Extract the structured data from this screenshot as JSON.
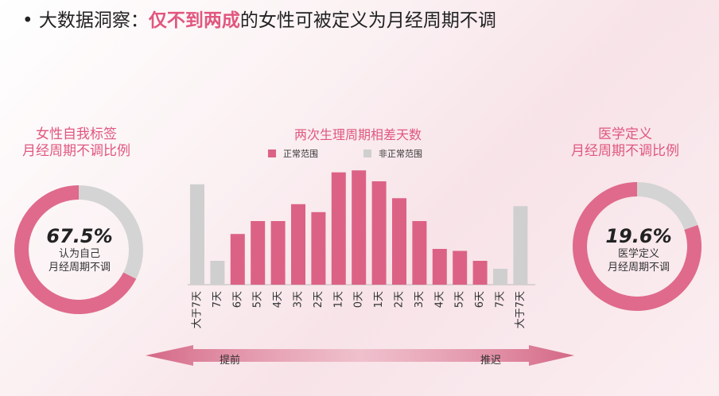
{
  "title": {
    "bullet": "•",
    "prefix": "大数据洞察：",
    "highlight": "仅不到两成",
    "suffix": "的女性可被定义为月经周期不调"
  },
  "left_panel": {
    "heading_line1": "女性自我标签",
    "heading_line2": "月经周期不调比例",
    "percent": "67.5%",
    "sub_line1": "认为自己",
    "sub_line2": "月经周期不调",
    "value": 0.675
  },
  "right_panel": {
    "heading_line1": "医学定义",
    "heading_line2": "月经周期不调比例",
    "percent": "19.6%",
    "sub_line1": "医学定义",
    "sub_line2": "月经周期不调",
    "value": 0.196
  },
  "colors": {
    "accent": "#e0577f",
    "bar_normal": "#dc6285",
    "bar_abnormal": "#cfcfcf",
    "donut_fill": "#e06a8c",
    "donut_rest": "#d4d4d4"
  },
  "chart_data": {
    "type": "bar",
    "title": "两次生理周期相差天数",
    "legend": [
      "正常范围",
      "非正常范围"
    ],
    "categories": [
      "大于7天",
      "7天",
      "6天",
      "5天",
      "4天",
      "3天",
      "2天",
      "1天",
      "0天",
      "1天",
      "2天",
      "3天",
      "4天",
      "5天",
      "6天",
      "7天",
      "大于7天"
    ],
    "values": [
      10.1,
      2.4,
      5.1,
      6.4,
      6.4,
      8.1,
      7.3,
      11.3,
      11.5,
      10.4,
      8.7,
      6.4,
      3.6,
      3.4,
      2.4,
      1.6,
      7.9
    ],
    "range_class": [
      "abnormal",
      "abnormal",
      "normal",
      "normal",
      "normal",
      "normal",
      "normal",
      "normal",
      "normal",
      "normal",
      "normal",
      "normal",
      "normal",
      "normal",
      "normal",
      "abnormal",
      "abnormal"
    ],
    "arrow_left_label": "提前",
    "arrow_right_label": "推迟"
  }
}
